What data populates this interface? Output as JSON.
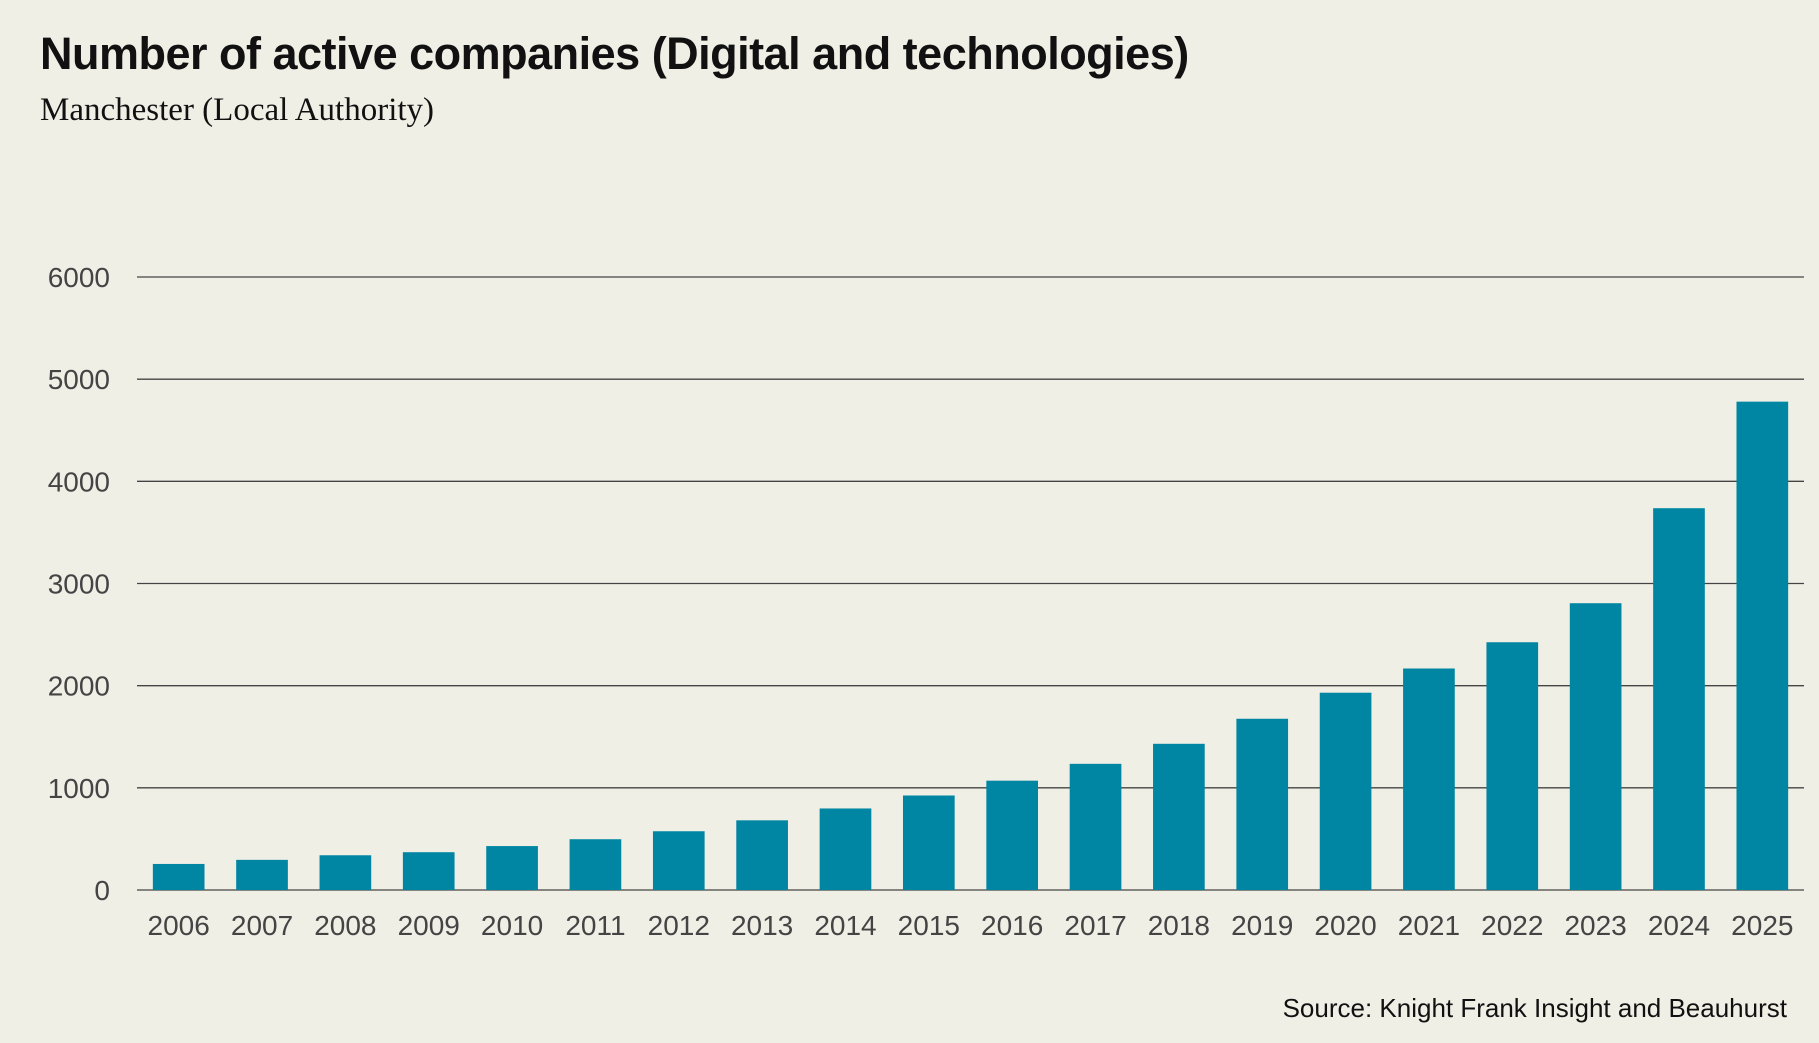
{
  "header": {
    "title": "Number of active companies (Digital and technologies)",
    "subtitle": "Manchester (Local Authority)"
  },
  "footer": {
    "source": "Source: Knight Frank Insight and Beauhurst"
  },
  "colors": {
    "bar": "#0086a3",
    "grid": "#444444",
    "background": "#f0efe6"
  },
  "chart_data": {
    "type": "bar",
    "title": "Number of active companies (Digital and technologies)",
    "subtitle": "Manchester (Local Authority)",
    "xlabel": "",
    "ylabel": "",
    "categories": [
      "2006",
      "2007",
      "2008",
      "2009",
      "2010",
      "2011",
      "2012",
      "2013",
      "2014",
      "2015",
      "2016",
      "2017",
      "2018",
      "2019",
      "2020",
      "2021",
      "2022",
      "2023",
      "2024",
      "2025"
    ],
    "values": [
      255,
      295,
      340,
      370,
      430,
      497,
      575,
      682,
      798,
      925,
      1070,
      1235,
      1431,
      1676,
      1931,
      2168,
      2425,
      2807,
      3737,
      4780
    ],
    "ylim": [
      0,
      6000
    ],
    "yticks": [
      0,
      1000,
      2000,
      3000,
      4000,
      5000,
      6000
    ],
    "grid": true,
    "legend": "none"
  }
}
